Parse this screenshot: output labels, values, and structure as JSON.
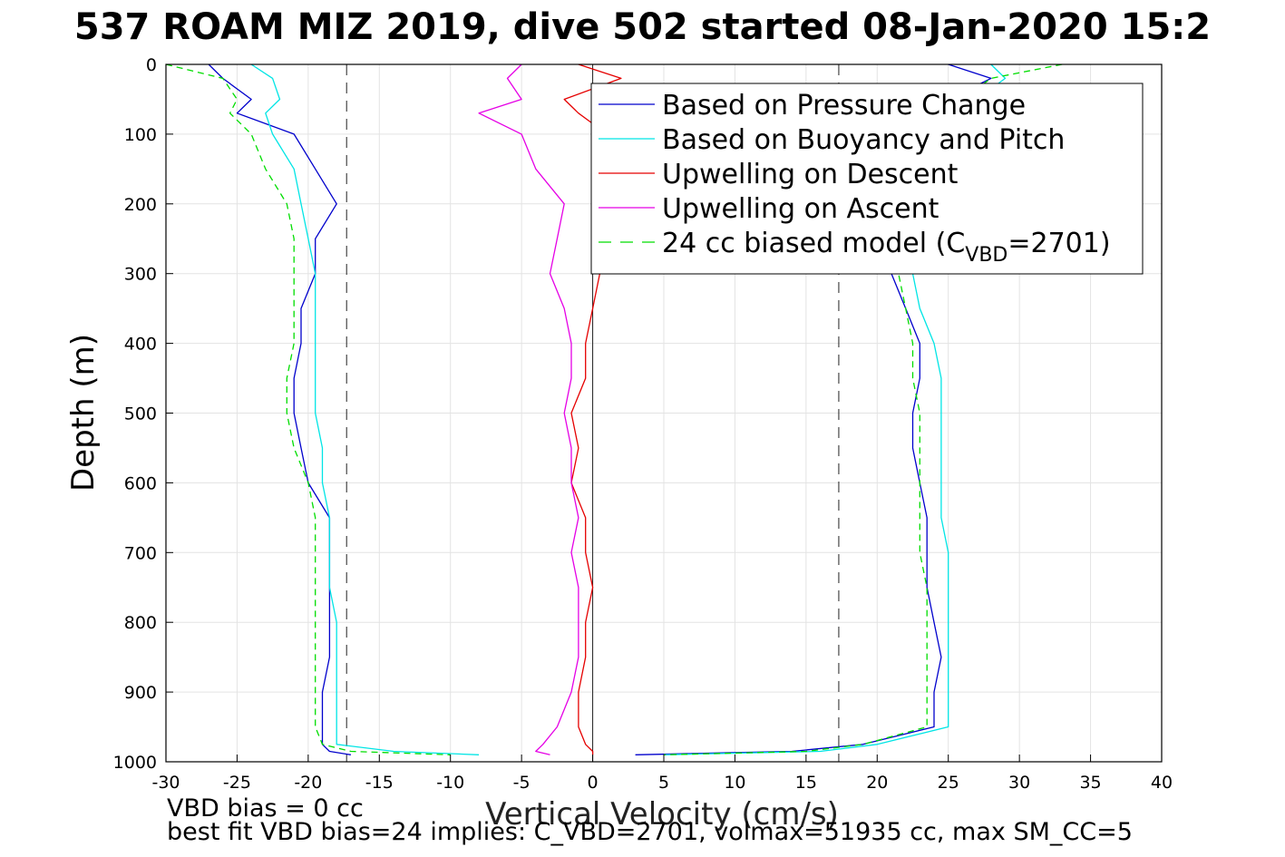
{
  "chart_data": {
    "type": "line",
    "title": "537 ROAM MIZ 2019, dive 502 started 08-Jan-2020 15:2",
    "xlabel": "Vertical Velocity (cm/s)",
    "ylabel": "Depth (m)",
    "xlim": [
      -30,
      40
    ],
    "ylim": [
      0,
      1000
    ],
    "y_reversed": true,
    "grid": true,
    "legend_position": "top-right",
    "x_ticks": [
      -30,
      -25,
      -20,
      -15,
      -10,
      -5,
      0,
      5,
      10,
      15,
      20,
      25,
      30,
      35,
      40
    ],
    "y_ticks": [
      0,
      100,
      200,
      300,
      400,
      500,
      600,
      700,
      800,
      900,
      1000
    ],
    "vertical_reference_lines": [
      -17.3,
      0,
      17.3
    ],
    "depth": [
      0,
      20,
      50,
      70,
      100,
      150,
      200,
      250,
      300,
      350,
      400,
      450,
      500,
      550,
      600,
      650,
      700,
      750,
      800,
      850,
      900,
      950,
      975,
      985,
      990
    ],
    "series": [
      {
        "name": "Based on Pressure Change",
        "color": "#0000cc",
        "style": "solid",
        "phase": "descent",
        "values": [
          -27,
          -26,
          -24,
          -25,
          -21,
          -19.5,
          -18,
          -19.5,
          -19.5,
          -20.5,
          -20.5,
          -21,
          -21,
          -20.5,
          -20,
          -18.5,
          -18.5,
          -18.5,
          -18.5,
          -18.5,
          -19,
          -19,
          -19,
          -18.5,
          -17
        ]
      },
      {
        "name": "Based on Pressure Change",
        "color": "#0000cc",
        "style": "solid",
        "phase": "ascent",
        "values": [
          25,
          28,
          25,
          22,
          22,
          21,
          21,
          21,
          21,
          22,
          23,
          23,
          22.5,
          22.5,
          23,
          23.5,
          23.5,
          23.5,
          24,
          24.5,
          24,
          24,
          19,
          14,
          3
        ]
      },
      {
        "name": "Based on Buoyancy and Pitch",
        "color": "#00e5e5",
        "style": "solid",
        "phase": "descent",
        "values": [
          -24,
          -22.5,
          -22,
          -23,
          -22.5,
          -21,
          -20.5,
          -20,
          -19.5,
          -19.5,
          -19.5,
          -19.5,
          -19.5,
          -19,
          -19,
          -18.5,
          -18.5,
          -18.5,
          -18,
          -18,
          -18,
          -18,
          -18,
          -14,
          -8
        ]
      },
      {
        "name": "Based on Buoyancy and Pitch",
        "color": "#00e5e5",
        "style": "solid",
        "phase": "ascent",
        "values": [
          28,
          29,
          27,
          23,
          23,
          22,
          22,
          22,
          22.5,
          23,
          24,
          24.5,
          24.5,
          24.5,
          24.5,
          24.5,
          25,
          25,
          25,
          25,
          25,
          25,
          20,
          16,
          5
        ]
      },
      {
        "name": "Upwelling on Descent",
        "color": "#e50000",
        "style": "solid",
        "phase": "descent",
        "values": [
          -1,
          2,
          -2,
          -1,
          1,
          1,
          0.5,
          1,
          0.5,
          0,
          -0.5,
          -0.5,
          -1.5,
          -1,
          -1.5,
          -0.5,
          -0.5,
          0,
          -0.5,
          -0.5,
          -1,
          -1,
          -0.5,
          0,
          0
        ]
      },
      {
        "name": "Upwelling on Ascent",
        "color": "#e500e5",
        "style": "solid",
        "phase": "ascent",
        "values": [
          -5,
          -6,
          -5,
          -8,
          -5,
          -4,
          -2,
          -2.5,
          -3,
          -2,
          -1.5,
          -1.5,
          -2,
          -1.5,
          -1.5,
          -1,
          -1.5,
          -1,
          -1,
          -1,
          -1.5,
          -2.5,
          -3.5,
          -4,
          -3
        ]
      },
      {
        "name": "24 cc biased model (C_VBD=2701)",
        "color": "#00dd00",
        "style": "dashed",
        "phase": "descent",
        "values": [
          -30,
          -26,
          -25,
          -25.5,
          -24,
          -23,
          -21.5,
          -21,
          -21,
          -21,
          -21,
          -21.5,
          -21.5,
          -21,
          -20,
          -19.5,
          -19.5,
          -19.5,
          -19.5,
          -19.5,
          -19.5,
          -19.5,
          -19,
          -17,
          -10
        ]
      },
      {
        "name": "24 cc biased model (C_VBD=2701)",
        "color": "#00dd00",
        "style": "dashed",
        "phase": "ascent",
        "values": [
          33,
          28,
          26,
          22.5,
          22,
          21,
          21,
          21.5,
          21.5,
          22,
          22.5,
          22.5,
          23,
          23,
          23,
          23,
          23,
          23.5,
          23.5,
          23.5,
          23.5,
          23.5,
          19,
          15,
          5
        ]
      }
    ],
    "legend": [
      {
        "label": "Based on Pressure Change",
        "color": "#0000cc",
        "style": "solid"
      },
      {
        "label": "Based on Buoyancy and Pitch",
        "color": "#00e5e5",
        "style": "solid"
      },
      {
        "label": "Upwelling on Descent",
        "color": "#e50000",
        "style": "solid"
      },
      {
        "label": "Upwelling on Ascent",
        "color": "#e500e5",
        "style": "solid"
      },
      {
        "label_main": "24 cc biased model (C",
        "label_sub": "VBD",
        "label_end": "=2701)",
        "color": "#00dd00",
        "style": "dashed"
      }
    ]
  },
  "notes": {
    "line1": "VBD bias = 0 cc",
    "line2": "best fit VBD bias=24 implies: C_VBD=2701, volmax=51935 cc, max SM_CC=5"
  }
}
